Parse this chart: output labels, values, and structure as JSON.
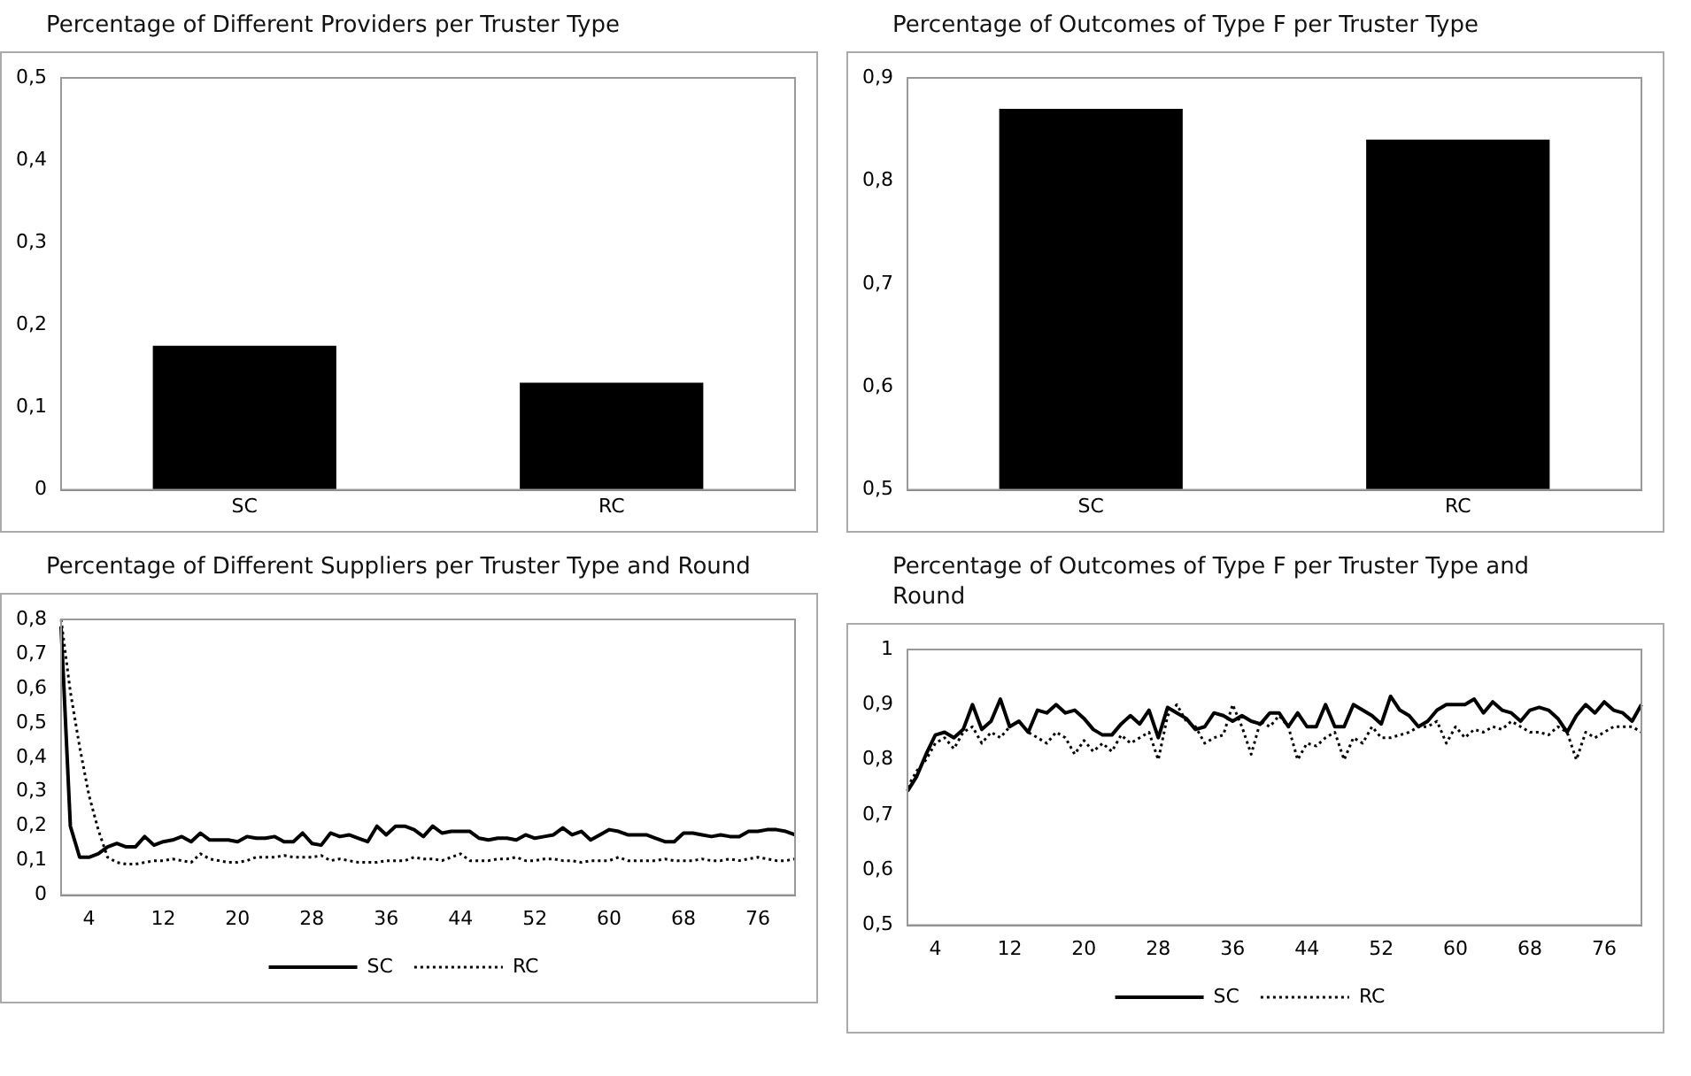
{
  "chart_data": [
    {
      "type": "bar",
      "title": "Percentage of Different Providers per Truster Type",
      "categories": [
        "SC",
        "RC"
      ],
      "values": [
        0.175,
        0.13
      ],
      "color": "#000000",
      "ylim": [
        0,
        0.5
      ],
      "yticks": [
        {
          "value": 0,
          "label": "0"
        },
        {
          "value": 0.1,
          "label": "0,1"
        },
        {
          "value": 0.2,
          "label": "0,2"
        },
        {
          "value": 0.3,
          "label": "0,3"
        },
        {
          "value": 0.4,
          "label": "0,4"
        },
        {
          "value": 0.5,
          "label": "0,5"
        }
      ],
      "grid": false,
      "legend": false
    },
    {
      "type": "bar",
      "title": "Percentage of Outcomes of Type F per Truster Type",
      "categories": [
        "SC",
        "RC"
      ],
      "values": [
        0.87,
        0.84
      ],
      "color": "#000000",
      "ylim": [
        0.5,
        0.9
      ],
      "yticks": [
        {
          "value": 0.5,
          "label": "0,5"
        },
        {
          "value": 0.6,
          "label": "0,6"
        },
        {
          "value": 0.7,
          "label": "0,7"
        },
        {
          "value": 0.8,
          "label": "0,8"
        },
        {
          "value": 0.9,
          "label": "0,9"
        }
      ],
      "grid": false,
      "legend": false
    },
    {
      "type": "line",
      "title": "Percentage of Different Suppliers per Truster Type and Round",
      "categories": [
        null,
        null,
        null,
        "4",
        null,
        null,
        null,
        null,
        null,
        null,
        null,
        "12",
        null,
        null,
        null,
        null,
        null,
        null,
        null,
        "20",
        null,
        null,
        null,
        null,
        null,
        null,
        null,
        "28",
        null,
        null,
        null,
        null,
        null,
        null,
        null,
        "36",
        null,
        null,
        null,
        null,
        null,
        null,
        null,
        "44",
        null,
        null,
        null,
        null,
        null,
        null,
        null,
        "52",
        null,
        null,
        null,
        null,
        null,
        null,
        null,
        "60",
        null,
        null,
        null,
        null,
        null,
        null,
        null,
        "68",
        null,
        null,
        null,
        null,
        null,
        null,
        null,
        "76",
        null,
        null,
        null,
        null
      ],
      "ylim": [
        0,
        0.8
      ],
      "yticks": [
        {
          "value": 0,
          "label": "0"
        },
        {
          "value": 0.1,
          "label": "0,1"
        },
        {
          "value": 0.2,
          "label": "0,2"
        },
        {
          "value": 0.3,
          "label": "0,3"
        },
        {
          "value": 0.4,
          "label": "0,4"
        },
        {
          "value": 0.5,
          "label": "0,5"
        },
        {
          "value": 0.6,
          "label": "0,6"
        },
        {
          "value": 0.7,
          "label": "0,7"
        },
        {
          "value": 0.8,
          "label": "0,8"
        }
      ],
      "grid": false,
      "legend": "bottom",
      "series": [
        {
          "name": "SC",
          "color": "#000000",
          "line_style": "solid",
          "values": [
            0.78,
            0.2,
            0.11,
            0.11,
            0.12,
            0.14,
            0.15,
            0.14,
            0.14,
            0.17,
            0.145,
            0.155,
            0.16,
            0.17,
            0.155,
            0.18,
            0.16,
            0.16,
            0.16,
            0.155,
            0.17,
            0.165,
            0.165,
            0.17,
            0.155,
            0.155,
            0.18,
            0.15,
            0.145,
            0.18,
            0.17,
            0.175,
            0.165,
            0.155,
            0.2,
            0.175,
            0.2,
            0.2,
            0.19,
            0.17,
            0.2,
            0.18,
            0.185,
            0.185,
            0.185,
            0.165,
            0.16,
            0.165,
            0.165,
            0.16,
            0.175,
            0.165,
            0.17,
            0.175,
            0.195,
            0.175,
            0.185,
            0.16,
            0.175,
            0.19,
            0.185,
            0.175,
            0.175,
            0.175,
            0.165,
            0.155,
            0.155,
            0.18,
            0.18,
            0.175,
            0.17,
            0.175,
            0.17,
            0.17,
            0.185,
            0.185,
            0.19,
            0.19,
            0.185,
            0.175
          ]
        },
        {
          "name": "RC",
          "color": "#000000",
          "line_style": "dotted",
          "values": [
            0.8,
            0.59,
            0.43,
            0.29,
            0.19,
            0.11,
            0.095,
            0.09,
            0.09,
            0.095,
            0.1,
            0.1,
            0.105,
            0.1,
            0.095,
            0.12,
            0.105,
            0.1,
            0.095,
            0.095,
            0.1,
            0.11,
            0.11,
            0.11,
            0.115,
            0.11,
            0.11,
            0.11,
            0.115,
            0.1,
            0.105,
            0.1,
            0.095,
            0.095,
            0.095,
            0.1,
            0.1,
            0.1,
            0.11,
            0.105,
            0.105,
            0.1,
            0.11,
            0.12,
            0.1,
            0.1,
            0.1,
            0.105,
            0.105,
            0.11,
            0.1,
            0.1,
            0.105,
            0.105,
            0.1,
            0.1,
            0.095,
            0.1,
            0.1,
            0.1,
            0.11,
            0.1,
            0.1,
            0.1,
            0.1,
            0.105,
            0.1,
            0.1,
            0.1,
            0.105,
            0.1,
            0.1,
            0.105,
            0.1,
            0.105,
            0.11,
            0.105,
            0.1,
            0.1,
            0.105
          ]
        }
      ]
    },
    {
      "type": "line",
      "title": "Percentage of Outcomes of Type F per Truster Type and Round",
      "categories": [
        null,
        null,
        null,
        "4",
        null,
        null,
        null,
        null,
        null,
        null,
        null,
        "12",
        null,
        null,
        null,
        null,
        null,
        null,
        null,
        "20",
        null,
        null,
        null,
        null,
        null,
        null,
        null,
        "28",
        null,
        null,
        null,
        null,
        null,
        null,
        null,
        "36",
        null,
        null,
        null,
        null,
        null,
        null,
        null,
        "44",
        null,
        null,
        null,
        null,
        null,
        null,
        null,
        "52",
        null,
        null,
        null,
        null,
        null,
        null,
        null,
        "60",
        null,
        null,
        null,
        null,
        null,
        null,
        null,
        "68",
        null,
        null,
        null,
        null,
        null,
        null,
        null,
        "76",
        null,
        null,
        null,
        null
      ],
      "ylim": [
        0.5,
        1
      ],
      "yticks": [
        {
          "value": 0.5,
          "label": "0,5"
        },
        {
          "value": 0.6,
          "label": "0,6"
        },
        {
          "value": 0.7,
          "label": "0,7"
        },
        {
          "value": 0.8,
          "label": "0,8"
        },
        {
          "value": 0.9,
          "label": "0,9"
        },
        {
          "value": 1,
          "label": "1"
        }
      ],
      "grid": false,
      "legend": "bottom",
      "series": [
        {
          "name": "SC",
          "color": "#000000",
          "line_style": "solid",
          "values": [
            0.743,
            0.77,
            0.81,
            0.845,
            0.85,
            0.84,
            0.855,
            0.9,
            0.855,
            0.87,
            0.91,
            0.86,
            0.87,
            0.85,
            0.89,
            0.885,
            0.9,
            0.885,
            0.89,
            0.875,
            0.855,
            0.845,
            0.845,
            0.865,
            0.88,
            0.865,
            0.89,
            0.84,
            0.895,
            0.885,
            0.875,
            0.855,
            0.86,
            0.885,
            0.88,
            0.87,
            0.88,
            0.87,
            0.865,
            0.885,
            0.885,
            0.86,
            0.885,
            0.86,
            0.86,
            0.9,
            0.86,
            0.86,
            0.9,
            0.89,
            0.88,
            0.865,
            0.915,
            0.89,
            0.88,
            0.86,
            0.87,
            0.89,
            0.9,
            0.9,
            0.9,
            0.91,
            0.885,
            0.905,
            0.89,
            0.885,
            0.87,
            0.89,
            0.895,
            0.89,
            0.875,
            0.85,
            0.88,
            0.9,
            0.885,
            0.905,
            0.89,
            0.885,
            0.87,
            0.9
          ]
        },
        {
          "name": "RC",
          "color": "#000000",
          "line_style": "dotted",
          "values": [
            0.75,
            0.78,
            0.8,
            0.83,
            0.84,
            0.82,
            0.85,
            0.86,
            0.83,
            0.85,
            0.84,
            0.86,
            0.87,
            0.85,
            0.84,
            0.83,
            0.85,
            0.84,
            0.81,
            0.835,
            0.815,
            0.83,
            0.815,
            0.845,
            0.83,
            0.84,
            0.85,
            0.8,
            0.88,
            0.9,
            0.87,
            0.86,
            0.83,
            0.84,
            0.845,
            0.9,
            0.86,
            0.81,
            0.87,
            0.86,
            0.88,
            0.86,
            0.8,
            0.83,
            0.825,
            0.84,
            0.85,
            0.8,
            0.84,
            0.83,
            0.86,
            0.84,
            0.84,
            0.845,
            0.85,
            0.86,
            0.86,
            0.87,
            0.83,
            0.86,
            0.84,
            0.855,
            0.85,
            0.86,
            0.855,
            0.87,
            0.86,
            0.85,
            0.85,
            0.845,
            0.86,
            0.85,
            0.8,
            0.85,
            0.84,
            0.85,
            0.86,
            0.86,
            0.86,
            0.85
          ]
        }
      ]
    }
  ]
}
